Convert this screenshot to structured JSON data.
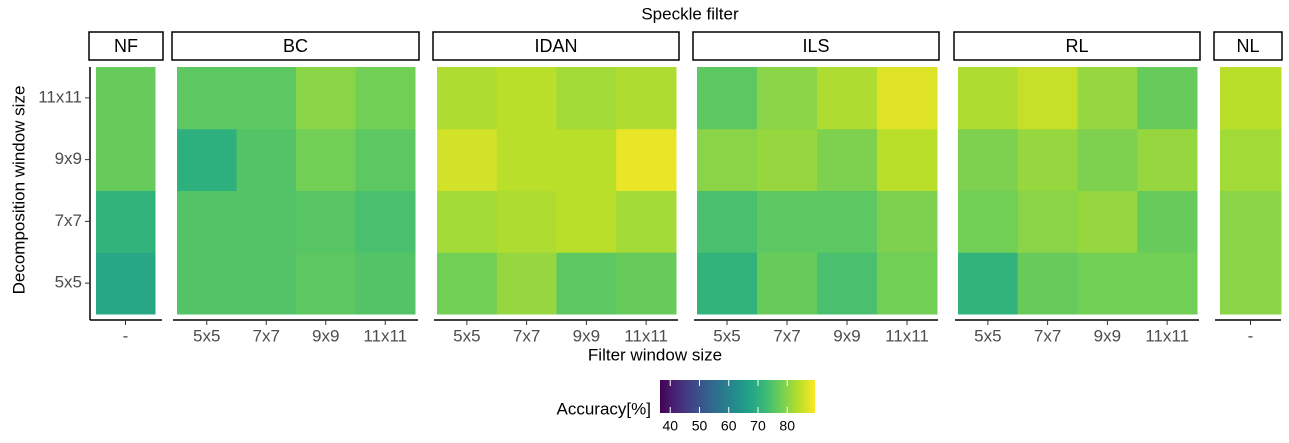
{
  "chart_data": {
    "type": "heatmap",
    "title": "Speckle filter",
    "x_label": "Filter window size",
    "y_label": "Decomposition window size",
    "y_categories": [
      "5x5",
      "7x7",
      "9x9",
      "11x11"
    ],
    "facets": [
      {
        "name": "NF",
        "x": [
          "-"
        ],
        "values": [
          [
            68
          ],
          [
            71
          ],
          [
            77
          ],
          [
            77
          ]
        ]
      },
      {
        "name": "BC",
        "x": [
          "5x5",
          "7x7",
          "9x9",
          "11x11"
        ],
        "values": [
          [
            75,
            75,
            76,
            75
          ],
          [
            75,
            75,
            75.5,
            74
          ],
          [
            70,
            75,
            78,
            76
          ],
          [
            76,
            76,
            80,
            78
          ]
        ]
      },
      {
        "name": "IDAN",
        "x": [
          "5x5",
          "7x7",
          "9x9",
          "11x11"
        ],
        "values": [
          [
            78,
            81,
            76,
            77
          ],
          [
            82,
            83,
            84,
            82
          ],
          [
            86,
            84,
            84,
            88
          ],
          [
            83,
            84,
            82,
            83
          ]
        ]
      },
      {
        "name": "ILS",
        "x": [
          "5x5",
          "7x7",
          "9x9",
          "11x11"
        ],
        "values": [
          [
            71,
            77,
            74,
            78
          ],
          [
            74,
            76,
            76,
            79
          ],
          [
            80,
            81,
            79,
            84
          ],
          [
            76,
            80,
            83,
            87
          ]
        ]
      },
      {
        "name": "RL",
        "x": [
          "5x5",
          "7x7",
          "9x9",
          "11x11"
        ],
        "values": [
          [
            71,
            77,
            78,
            78
          ],
          [
            78,
            80,
            81,
            77
          ],
          [
            79,
            81,
            79,
            81
          ],
          [
            83,
            85,
            81,
            77
          ]
        ]
      },
      {
        "name": "NL",
        "x": [
          "-"
        ],
        "values": [
          [
            80
          ],
          [
            80
          ],
          [
            82
          ],
          [
            84
          ]
        ]
      }
    ],
    "legend_title": "Accuracy[%]",
    "colormap": "viridis",
    "clim": [
      36.5,
      89.5
    ],
    "cticks": [
      40,
      50,
      60,
      70,
      80
    ]
  }
}
